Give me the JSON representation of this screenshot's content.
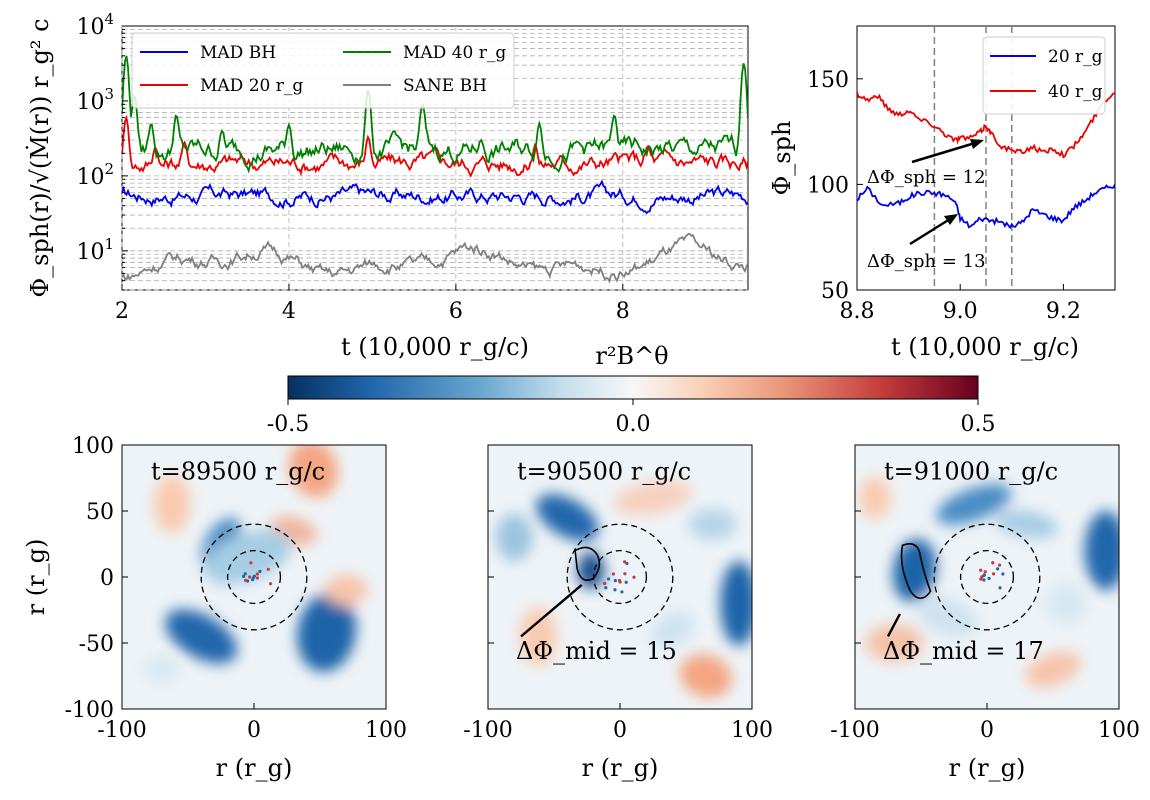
{
  "figure": {
    "colorbar": {
      "label": "r²B^θ",
      "ticks": [
        "-0.5",
        "0.0",
        "0.5"
      ],
      "range": [
        -0.5,
        0.5
      ],
      "colormap": "RdBu_r"
    }
  },
  "chart_data": [
    {
      "id": "flux_timeseries",
      "type": "line",
      "title": "",
      "xlabel": "t (10,000 r_g/c)",
      "ylabel": "Φ_sph(r)/√(Ṁ(r)) r_g² c",
      "xlim": [
        2,
        9.5
      ],
      "ylim": [
        3,
        10000
      ],
      "yscale": "log",
      "x_ticks": [
        "2",
        "4",
        "6",
        "8"
      ],
      "y_ticks": [
        "10^1",
        "10^2",
        "10^3",
        "10^4"
      ],
      "legend_position": "top-left",
      "grid": true,
      "series": [
        {
          "name": "MAD BH",
          "color": "#0000ee",
          "base": 55,
          "var": 0.13,
          "spikes": []
        },
        {
          "name": "MAD 20 r_g",
          "color": "#ee0000",
          "base": 150,
          "var": 0.15,
          "spikes": [
            [
              2.05,
              600
            ],
            [
              2.4,
              240
            ],
            [
              2.75,
              280
            ],
            [
              4.95,
              330
            ],
            [
              6.95,
              260
            ],
            [
              8.3,
              250
            ]
          ]
        },
        {
          "name": "MAD 40 r_g",
          "color": "#008000",
          "base": 220,
          "var": 0.18,
          "spikes": [
            [
              2.05,
              4000
            ],
            [
              2.15,
              1200
            ],
            [
              2.35,
              500
            ],
            [
              2.65,
              650
            ],
            [
              3.2,
              400
            ],
            [
              4.0,
              480
            ],
            [
              4.95,
              1400
            ],
            [
              5.6,
              900
            ],
            [
              6.3,
              300
            ],
            [
              7.0,
              500
            ],
            [
              7.9,
              650
            ],
            [
              8.7,
              300
            ],
            [
              9.45,
              3200
            ]
          ]
        },
        {
          "name": "SANE BH",
          "color": "#808080",
          "base": 7,
          "var": 0.12,
          "spikes": []
        }
      ],
      "legend": [
        "MAD BH",
        "MAD 20 r_g",
        "MAD 40 r_g",
        "SANE BH"
      ]
    },
    {
      "id": "flux_zoom",
      "type": "line",
      "xlabel": "t (10,000 r_g/c)",
      "ylabel": "Φ_sph",
      "xlim": [
        8.8,
        9.3
      ],
      "ylim": [
        50,
        175
      ],
      "x_ticks": [
        "8.8",
        "9.0",
        "9.2"
      ],
      "y_ticks": [
        "50",
        "100",
        "150"
      ],
      "vlines": [
        8.95,
        9.05,
        9.1
      ],
      "legend_position": "top-right",
      "series": [
        {
          "name": "20 r_g",
          "color": "#0000ee",
          "x": [
            8.8,
            8.82,
            8.85,
            8.88,
            8.9,
            8.92,
            8.95,
            8.97,
            8.99,
            9.0,
            9.02,
            9.04,
            9.06,
            9.08,
            9.1,
            9.12,
            9.14,
            9.16,
            9.18,
            9.2,
            9.22,
            9.24,
            9.26,
            9.28,
            9.3
          ],
          "y": [
            93,
            98,
            90,
            91,
            94,
            96,
            96,
            95,
            92,
            84,
            80,
            84,
            83,
            82,
            80,
            82,
            88,
            86,
            84,
            83,
            89,
            92,
            96,
            98,
            100
          ]
        },
        {
          "name": "40 r_g",
          "color": "#ee0000",
          "x": [
            8.8,
            8.82,
            8.84,
            8.86,
            8.88,
            8.9,
            8.92,
            8.95,
            8.97,
            8.99,
            9.0,
            9.02,
            9.04,
            9.05,
            9.06,
            9.08,
            9.1,
            9.12,
            9.14,
            9.16,
            9.18,
            9.2,
            9.22,
            9.24,
            9.26,
            9.28,
            9.3
          ],
          "y": [
            143,
            140,
            142,
            136,
            133,
            135,
            131,
            128,
            124,
            121,
            122,
            122,
            125,
            128,
            124,
            118,
            116,
            115,
            118,
            115,
            117,
            114,
            118,
            124,
            132,
            140,
            143
          ]
        }
      ],
      "legend": [
        "20 r_g",
        "40 r_g"
      ],
      "annotations": [
        "ΔΦ_sph = 12",
        "ΔΦ_sph = 13"
      ]
    },
    {
      "id": "maps",
      "type": "heatmap",
      "xlabel": "r (r_g)",
      "ylabel": "r (r_g)",
      "xlim": [
        -100,
        100
      ],
      "ylim": [
        -100,
        100
      ],
      "x_ticks": [
        "-100",
        "0",
        "100"
      ],
      "y_ticks": [
        "100",
        "50",
        "0",
        "-50",
        "-100"
      ],
      "circles_radius_rg": [
        20,
        40
      ],
      "panels": [
        {
          "title": "t=89500 r_g/c",
          "annotation": ""
        },
        {
          "title": "t=90500 r_g/c",
          "annotation": "ΔΦ_mid = 15"
        },
        {
          "title": "t=91000 r_g/c",
          "annotation": "ΔΦ_mid = 17"
        }
      ]
    }
  ]
}
